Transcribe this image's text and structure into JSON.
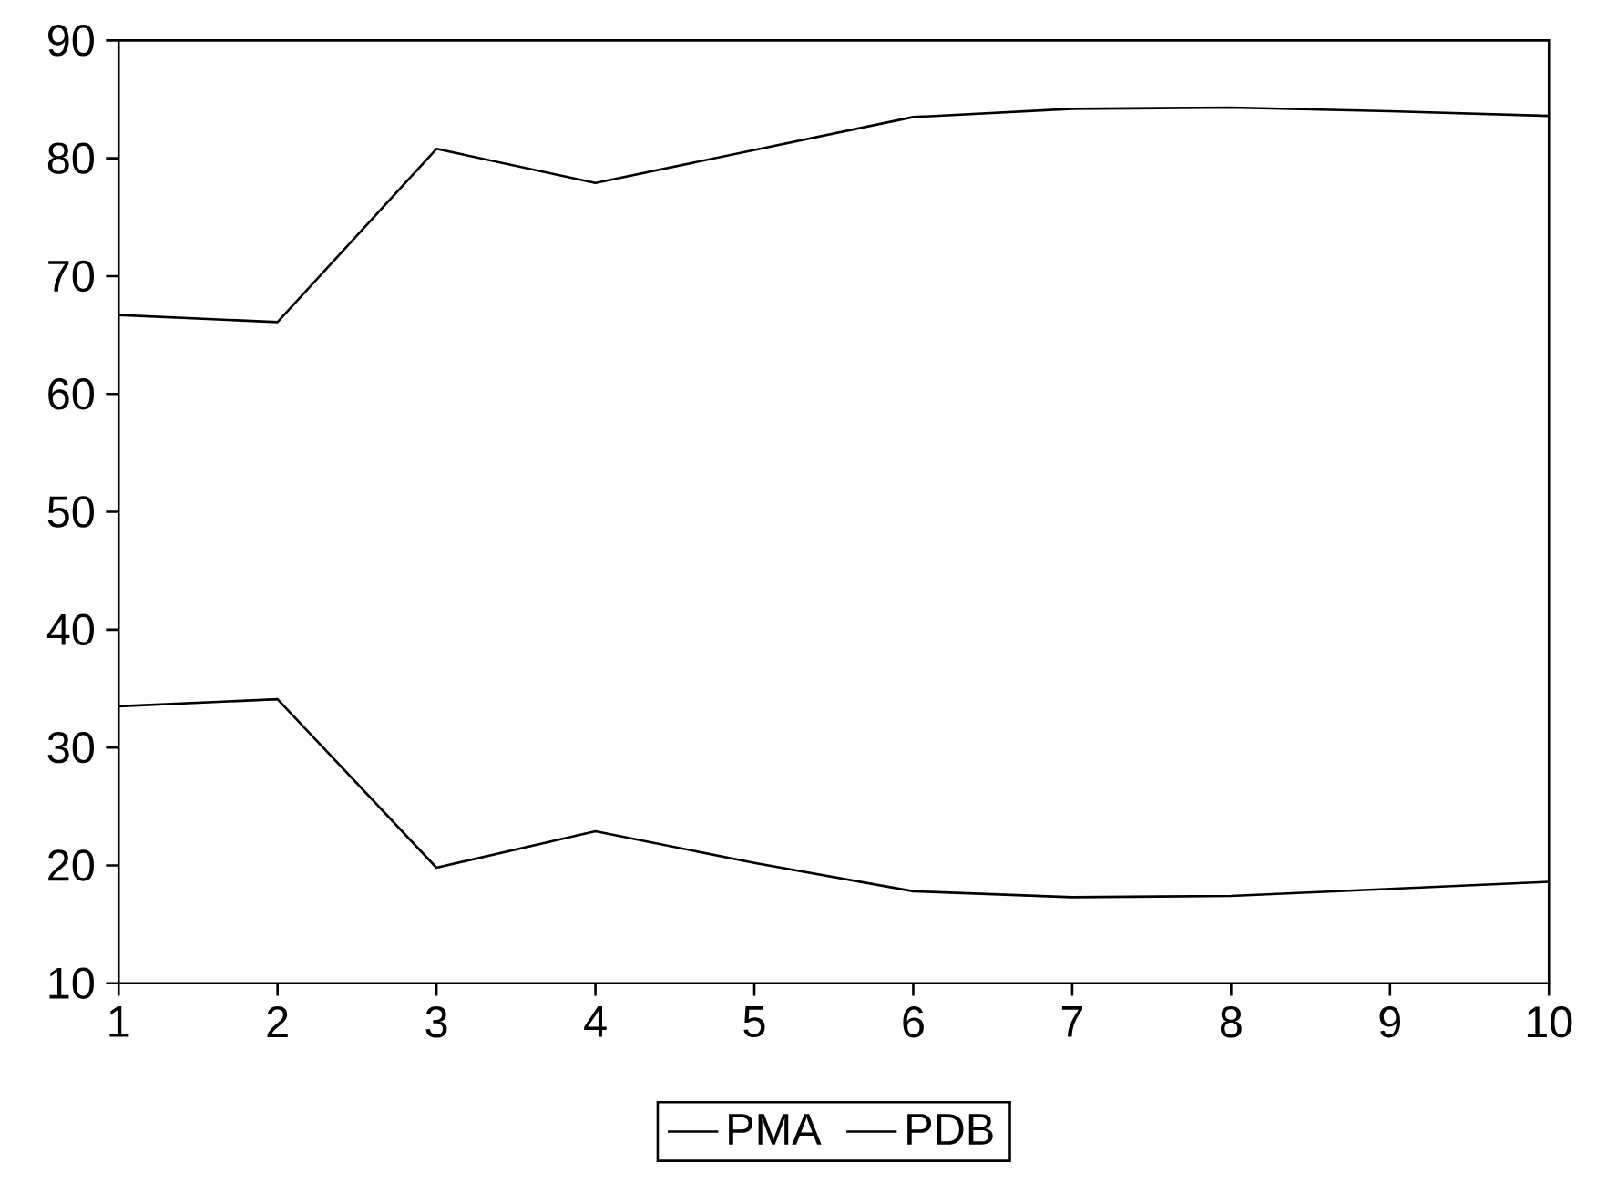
{
  "chart_data": {
    "type": "line",
    "x": [
      1,
      2,
      3,
      4,
      5,
      6,
      7,
      8,
      9,
      10
    ],
    "series": [
      {
        "name": "PMA",
        "color": "#000000",
        "values": [
          66.7,
          66.1,
          80.8,
          77.9,
          80.7,
          83.5,
          84.2,
          84.3,
          84.0,
          83.6
        ]
      },
      {
        "name": "PDB",
        "color": "#000000",
        "values": [
          33.5,
          34.1,
          19.8,
          22.9,
          20.2,
          17.8,
          17.3,
          17.4,
          18.0,
          18.6
        ]
      }
    ],
    "xlim": [
      1,
      10
    ],
    "xticks": [
      1,
      2,
      3,
      4,
      5,
      6,
      7,
      8,
      9,
      10
    ],
    "ylim": [
      10,
      90
    ],
    "yticks": [
      10,
      20,
      30,
      40,
      50,
      60,
      70,
      80,
      90
    ],
    "grid": false,
    "legend": "bottom",
    "marker": "none",
    "line_style": "solid"
  }
}
